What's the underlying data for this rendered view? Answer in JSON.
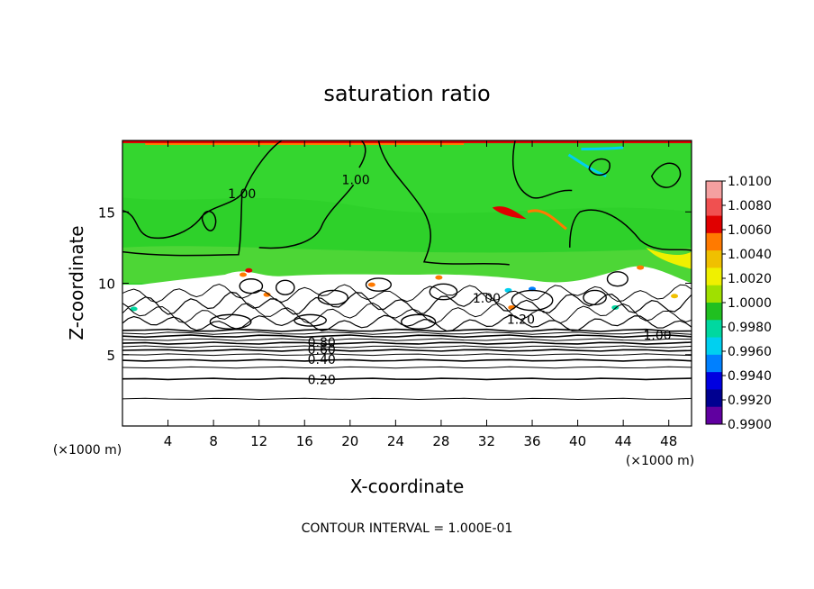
{
  "chart_data": {
    "type": "heatmap",
    "title": "saturation ratio",
    "xlabel": "X-coordinate",
    "ylabel": "Z-coordinate",
    "x_unit": "(×1000 m)",
    "y_unit": "(×1000 m)",
    "xlim": [
      0,
      50
    ],
    "ylim": [
      0,
      20
    ],
    "x_ticks": [
      4,
      8,
      12,
      16,
      20,
      24,
      28,
      32,
      36,
      40,
      44,
      48
    ],
    "y_ticks": [
      5,
      10,
      15
    ],
    "footer": "CONTOUR INTERVAL = 1.000E-01",
    "colorbar": {
      "labels": [
        "1.0100",
        "1.0080",
        "1.0060",
        "1.0040",
        "1.0020",
        "1.0000",
        "0.9980",
        "0.9960",
        "0.9940",
        "0.9920",
        "0.9900"
      ],
      "colors": [
        "#f4a0a0",
        "#f05050",
        "#e00000",
        "#ff7a00",
        "#f0c000",
        "#f0f000",
        "#a0e000",
        "#20c020",
        "#00d8a0",
        "#00d0f0",
        "#0080ff",
        "#0000e0",
        "#000090",
        "#6000a0"
      ]
    },
    "contour_labels": [
      {
        "text": "1.00",
        "x": 10.5,
        "y": 16.2
      },
      {
        "text": "1.00",
        "x": 20.5,
        "y": 17.2
      },
      {
        "text": "1.00",
        "x": 32.0,
        "y": 8.9
      },
      {
        "text": "1.20",
        "x": 35.0,
        "y": 7.4
      },
      {
        "text": "1.00",
        "x": 47.0,
        "y": 6.3
      },
      {
        "text": "0.80",
        "x": 17.5,
        "y": 5.8
      },
      {
        "text": "0.60",
        "x": 17.5,
        "y": 5.3
      },
      {
        "text": "0.40",
        "x": 17.5,
        "y": 4.6
      },
      {
        "text": "0.20",
        "x": 17.5,
        "y": 3.2
      }
    ],
    "grid": false
  }
}
